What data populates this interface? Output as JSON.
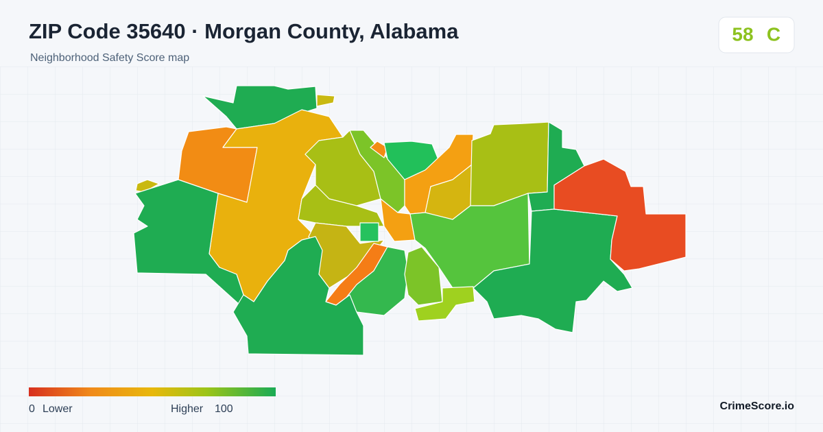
{
  "header": {
    "title": "ZIP Code 35640 · Morgan County, Alabama",
    "subtitle": "Neighborhood Safety Score map"
  },
  "score": {
    "value": 58,
    "grade": "C"
  },
  "legend": {
    "min": 0,
    "min_label": "Lower",
    "max_label": "Higher",
    "max": 100
  },
  "brand": "CrimeScore.io"
}
